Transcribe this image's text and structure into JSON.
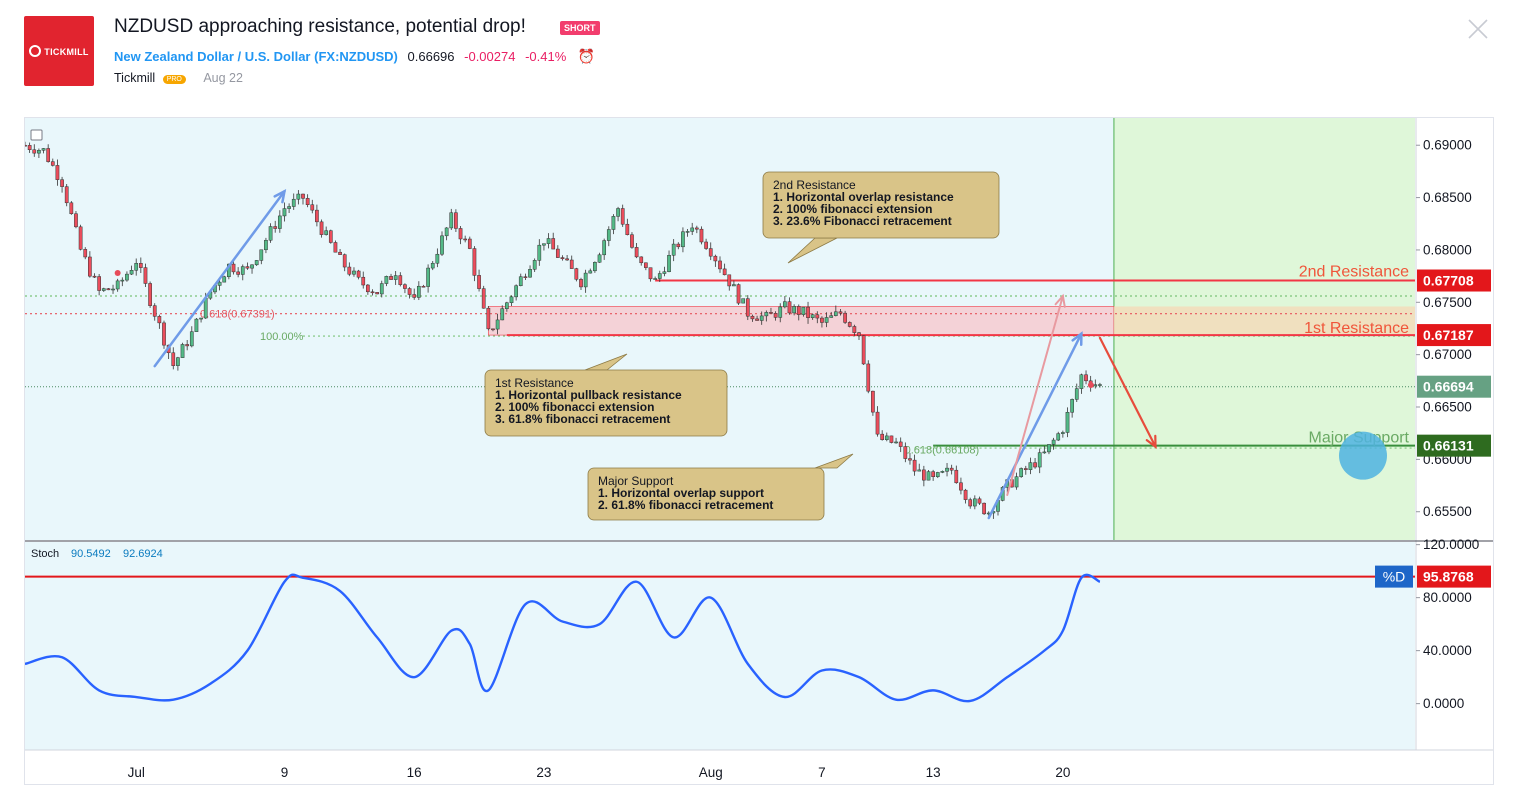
{
  "header": {
    "logo_text": "TICKMILL",
    "title": "NZDUSD approaching resistance, potential drop!",
    "badge": "SHORT",
    "symbol_name": "New Zealand Dollar / U.S. Dollar",
    "symbol_ticker": "(FX:NZDUSD)",
    "price": "0.66696",
    "change": "-0.00274",
    "change_pct": "-0.41%",
    "author": "Tickmill",
    "author_badge": "PRO",
    "date": "Aug 22"
  },
  "chart_data": [
    {
      "type": "candlestick",
      "symbol": "FX:NZDUSD",
      "y_ticks": [
        "0.69000",
        "0.68500",
        "0.68000",
        "0.67500",
        "0.67000",
        "0.66500",
        "0.66000",
        "0.65500"
      ],
      "ylim": [
        0.6523,
        0.6926
      ],
      "x_ticks": [
        {
          "label": "Jul",
          "date": "2018-07-01"
        },
        {
          "label": "9",
          "date": "2018-07-09"
        },
        {
          "label": "16",
          "date": "2018-07-16"
        },
        {
          "label": "23",
          "date": "2018-07-23"
        },
        {
          "label": "Aug",
          "date": "2018-08-01"
        },
        {
          "label": "7",
          "date": "2018-08-07"
        },
        {
          "label": "13",
          "date": "2018-08-13"
        },
        {
          "label": "20",
          "date": "2018-08-20"
        }
      ],
      "xlim": [
        "2018-06-25",
        "2018-09-08"
      ],
      "last_candle_date": "2018-08-22",
      "close_path": [
        [
          "2018-06-25",
          0.69
        ],
        [
          "2018-06-26",
          0.6895
        ],
        [
          "2018-06-27",
          0.6865
        ],
        [
          "2018-06-28",
          0.68
        ],
        [
          "2018-06-29",
          0.676
        ],
        [
          "2018-06-30",
          0.6765
        ],
        [
          "2018-07-01",
          0.679
        ],
        [
          "2018-07-02",
          0.674
        ],
        [
          "2018-07-03",
          0.669
        ],
        [
          "2018-07-04",
          0.672
        ],
        [
          "2018-07-05",
          0.676
        ],
        [
          "2018-07-06",
          0.6785
        ],
        [
          "2018-07-07",
          0.678
        ],
        [
          "2018-07-08",
          0.681
        ],
        [
          "2018-07-09",
          0.684
        ],
        [
          "2018-07-10",
          0.685
        ],
        [
          "2018-07-11",
          0.682
        ],
        [
          "2018-07-12",
          0.679
        ],
        [
          "2018-07-13",
          0.677
        ],
        [
          "2018-07-14",
          0.676
        ],
        [
          "2018-07-15",
          0.678
        ],
        [
          "2018-07-16",
          0.675
        ],
        [
          "2018-07-17",
          0.679
        ],
        [
          "2018-07-18",
          0.683
        ],
        [
          "2018-07-19",
          0.68
        ],
        [
          "2018-07-20",
          0.672
        ],
        [
          "2018-07-21",
          0.675
        ],
        [
          "2018-07-22",
          0.678
        ],
        [
          "2018-07-23",
          0.681
        ],
        [
          "2018-07-24",
          0.679
        ],
        [
          "2018-07-25",
          0.677
        ],
        [
          "2018-07-26",
          0.68
        ],
        [
          "2018-07-27",
          0.684
        ],
        [
          "2018-07-28",
          0.679
        ],
        [
          "2018-07-29",
          0.677
        ],
        [
          "2018-07-30",
          0.68
        ],
        [
          "2018-07-31",
          0.6825
        ],
        [
          "2018-08-01",
          0.68
        ],
        [
          "2018-08-02",
          0.677
        ],
        [
          "2018-08-03",
          0.674
        ],
        [
          "2018-08-04",
          0.6735
        ],
        [
          "2018-08-05",
          0.6745
        ],
        [
          "2018-08-06",
          0.674
        ],
        [
          "2018-08-07",
          0.673
        ],
        [
          "2018-08-08",
          0.674
        ],
        [
          "2018-08-09",
          0.672
        ],
        [
          "2018-08-10",
          0.662
        ],
        [
          "2018-08-11",
          0.6615
        ],
        [
          "2018-08-12",
          0.659
        ],
        [
          "2018-08-13",
          0.658
        ],
        [
          "2018-08-14",
          0.659
        ],
        [
          "2018-08-15",
          0.656
        ],
        [
          "2018-08-16",
          0.655
        ],
        [
          "2018-08-17",
          0.6575
        ],
        [
          "2018-08-18",
          0.659
        ],
        [
          "2018-08-19",
          0.6605
        ],
        [
          "2018-08-20",
          0.663
        ],
        [
          "2018-08-21",
          0.668
        ],
        [
          "2018-08-22",
          0.667
        ]
      ],
      "levels": [
        {
          "name": "2nd Resistance",
          "value": 0.67708,
          "label": "0.67708",
          "color": "#f23645"
        },
        {
          "name": "1st Resistance",
          "value": 0.67187,
          "label": "0.67187",
          "color": "#f23645"
        },
        {
          "name": "Major Support",
          "value": 0.66131,
          "label": "0.66131",
          "color": "#388e3c"
        }
      ],
      "current_price": {
        "value": 0.66694,
        "label": "0.66694"
      },
      "fib_labels": {
        "fib618": "0.618(0.67391)",
        "fib100": "100.00%",
        "support_fib": "0.618(0.66108)"
      },
      "annotations": {
        "second_resistance": {
          "title": "2nd Resistance",
          "lines": [
            "1. Horizontal overlap resistance",
            "2. 100% fibonacci extension",
            "3. 23.6% Fibonacci retracement"
          ]
        },
        "first_resistance": {
          "title": "1st Resistance",
          "lines": [
            "1. Horizontal pullback resistance",
            "2. 100% fibonacci extension",
            "3. 61.8% fibonacci retracement"
          ]
        },
        "major_support": {
          "title": "Major Support",
          "lines": [
            "1. Horizontal overlap support",
            "2. 61.8% fibonacci retracement"
          ]
        }
      },
      "zone_labels": {
        "second_resistance": "2nd Resistance",
        "first_resistance": "1st Resistance",
        "major_support": "Major Support"
      },
      "projection": {
        "from": [
          "2018-08-22",
          0.6716
        ],
        "to": [
          "2018-08-25",
          0.6612
        ]
      },
      "colors": {
        "up": "#53b987",
        "down": "#eb4d5c",
        "resistance": "#f23645",
        "support": "#388e3c",
        "zone_fill": "#f7c6cb",
        "forecast_bg": "#dff7d9",
        "chart_bg": "#e9f7fb"
      }
    },
    {
      "type": "line",
      "indicator": "Stoch",
      "legend": {
        "name": "Stoch",
        "k": "90.5492",
        "d": "92.6924"
      },
      "y_ticks": [
        "120.0000",
        "80.0000",
        "40.0000",
        "0.0000"
      ],
      "ylim": [
        -35,
        122
      ],
      "overbought": {
        "value": 95.8768,
        "label": "95.8768",
        "tag": "%D"
      },
      "d_line": [
        [
          "2018-06-25",
          30
        ],
        [
          "2018-06-27",
          35
        ],
        [
          "2018-06-29",
          10
        ],
        [
          "2018-07-01",
          5
        ],
        [
          "2018-07-03",
          3
        ],
        [
          "2018-07-05",
          15
        ],
        [
          "2018-07-07",
          40
        ],
        [
          "2018-07-09",
          92
        ],
        [
          "2018-07-10",
          95
        ],
        [
          "2018-07-12",
          85
        ],
        [
          "2018-07-14",
          50
        ],
        [
          "2018-07-16",
          20
        ],
        [
          "2018-07-18",
          55
        ],
        [
          "2018-07-19",
          45
        ],
        [
          "2018-07-20",
          10
        ],
        [
          "2018-07-22",
          75
        ],
        [
          "2018-07-24",
          62
        ],
        [
          "2018-07-26",
          60
        ],
        [
          "2018-07-28",
          92
        ],
        [
          "2018-07-30",
          50
        ],
        [
          "2018-08-01",
          80
        ],
        [
          "2018-08-03",
          30
        ],
        [
          "2018-08-05",
          5
        ],
        [
          "2018-08-07",
          25
        ],
        [
          "2018-08-09",
          20
        ],
        [
          "2018-08-11",
          3
        ],
        [
          "2018-08-13",
          10
        ],
        [
          "2018-08-15",
          2
        ],
        [
          "2018-08-17",
          20
        ],
        [
          "2018-08-19",
          40
        ],
        [
          "2018-08-20",
          55
        ],
        [
          "2018-08-21",
          95
        ],
        [
          "2018-08-22",
          92
        ]
      ],
      "color": "#2962ff"
    }
  ]
}
